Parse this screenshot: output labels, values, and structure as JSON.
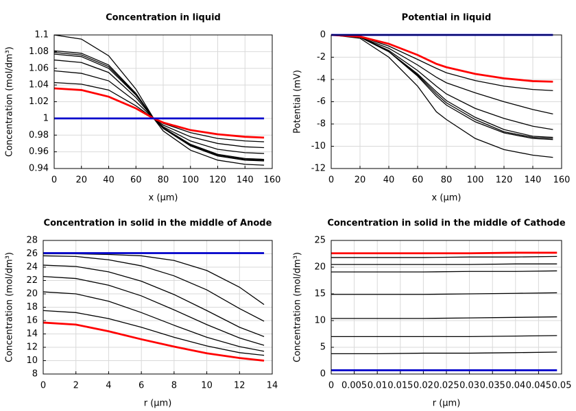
{
  "chart_data": [
    {
      "type": "line",
      "title": "Concentration in liquid",
      "x_label": "x (µm)",
      "y_label": "Concentration (mol/dm³)",
      "x": [
        0,
        20,
        40,
        60,
        73,
        80,
        100,
        120,
        140,
        154
      ],
      "xlim": [
        0,
        160
      ],
      "xticks": [
        0,
        20,
        40,
        60,
        80,
        100,
        120,
        140,
        160
      ],
      "ylim": [
        0.94,
        1.1
      ],
      "yticks": [
        0.94,
        0.96,
        0.98,
        1,
        1.02,
        1.04,
        1.06,
        1.08,
        1.1
      ],
      "grid": true,
      "series": [
        {
          "color": "#000000",
          "values": [
            1.1,
            1.095,
            1.075,
            1.035,
            1.0,
            0.985,
            0.962,
            0.95,
            0.945,
            0.944
          ]
        },
        {
          "color": "#000000",
          "values": [
            1.081,
            1.078,
            1.064,
            1.03,
            1.0,
            0.988,
            0.967,
            0.955,
            0.95,
            0.949
          ]
        },
        {
          "color": "#000000",
          "values": [
            1.079,
            1.076,
            1.062,
            1.029,
            1.0,
            0.988,
            0.968,
            0.956,
            0.951,
            0.95
          ]
        },
        {
          "color": "#000000",
          "values": [
            1.077,
            1.074,
            1.06,
            1.028,
            1.0,
            0.989,
            0.969,
            0.957,
            0.952,
            0.951
          ]
        },
        {
          "color": "#000000",
          "values": [
            1.07,
            1.067,
            1.055,
            1.025,
            1.0,
            0.99,
            0.973,
            0.963,
            0.959,
            0.958
          ]
        },
        {
          "color": "#000000",
          "values": [
            1.057,
            1.054,
            1.045,
            1.02,
            1.0,
            0.992,
            0.978,
            0.97,
            0.966,
            0.965
          ]
        },
        {
          "color": "#000000",
          "values": [
            1.043,
            1.041,
            1.034,
            1.015,
            1.0,
            0.994,
            0.983,
            0.976,
            0.973,
            0.972
          ]
        },
        {
          "color": "#ff0000",
          "values": [
            1.036,
            1.034,
            1.026,
            1.012,
            1.0,
            0.995,
            0.986,
            0.981,
            0.978,
            0.977
          ]
        },
        {
          "color": "#0000cc",
          "values": [
            1,
            1,
            1,
            1,
            1,
            1,
            1,
            1,
            1,
            1
          ]
        }
      ]
    },
    {
      "type": "line",
      "title": "Potential in liquid",
      "x_label": "x (µm)",
      "y_label": "Potential (mV)",
      "x": [
        0,
        20,
        40,
        60,
        73,
        80,
        100,
        120,
        140,
        154
      ],
      "xlim": [
        0,
        160
      ],
      "xticks": [
        0,
        20,
        40,
        60,
        80,
        100,
        120,
        140,
        160
      ],
      "ylim": [
        -12,
        0
      ],
      "yticks": [
        -12,
        -10,
        -8,
        -6,
        -4,
        -2,
        0
      ],
      "grid": true,
      "series": [
        {
          "color": "#000000",
          "values": [
            0,
            -0.15,
            -1.0,
            -2.2,
            -3.0,
            -3.4,
            -4.1,
            -4.6,
            -4.9,
            -5.0
          ]
        },
        {
          "color": "#000000",
          "values": [
            0,
            -0.2,
            -1.2,
            -2.7,
            -3.8,
            -4.3,
            -5.2,
            -6.0,
            -6.7,
            -7.1
          ]
        },
        {
          "color": "#000000",
          "values": [
            0,
            -0.2,
            -1.4,
            -3.2,
            -4.6,
            -5.3,
            -6.6,
            -7.5,
            -8.2,
            -8.5
          ]
        },
        {
          "color": "#000000",
          "values": [
            0,
            -0.2,
            -1.5,
            -3.5,
            -5.1,
            -5.9,
            -7.4,
            -8.5,
            -9.1,
            -9.2
          ]
        },
        {
          "color": "#000000",
          "values": [
            0,
            -0.2,
            -1.5,
            -3.6,
            -5.3,
            -6.1,
            -7.6,
            -8.7,
            -9.2,
            -9.3
          ]
        },
        {
          "color": "#000000",
          "values": [
            0,
            -0.2,
            -1.5,
            -3.7,
            -5.5,
            -6.3,
            -7.8,
            -8.8,
            -9.3,
            -9.4
          ]
        },
        {
          "color": "#000000",
          "values": [
            0,
            -0.3,
            -2.0,
            -4.6,
            -6.9,
            -7.6,
            -9.3,
            -10.3,
            -10.8,
            -11.0
          ]
        },
        {
          "color": "#ff0000",
          "values": [
            0,
            -0.15,
            -0.8,
            -1.8,
            -2.6,
            -2.9,
            -3.5,
            -3.9,
            -4.15,
            -4.2
          ]
        },
        {
          "color": "#0000cc",
          "values": [
            0,
            0,
            0,
            0,
            0,
            0,
            0,
            0,
            0,
            0
          ]
        }
      ]
    },
    {
      "type": "line",
      "title": "Concentration in solid in the middle of Anode",
      "x_label": "r (µm)",
      "y_label": "Concentration (mol/dm³)",
      "x": [
        0,
        2,
        4,
        6,
        8,
        10,
        12,
        13.5
      ],
      "xlim": [
        0,
        14
      ],
      "xticks": [
        0,
        2,
        4,
        6,
        8,
        10,
        12,
        14
      ],
      "ylim": [
        8,
        28
      ],
      "yticks": [
        8,
        10,
        12,
        14,
        16,
        18,
        20,
        22,
        24,
        26,
        28
      ],
      "grid": true,
      "series": [
        {
          "color": "#000000",
          "values": [
            26.0,
            26.0,
            25.9,
            25.7,
            25.0,
            23.5,
            21.0,
            18.4
          ]
        },
        {
          "color": "#000000",
          "values": [
            25.7,
            25.6,
            25.1,
            24.2,
            22.7,
            20.6,
            17.8,
            15.9
          ]
        },
        {
          "color": "#000000",
          "values": [
            24.3,
            24.1,
            23.3,
            21.9,
            19.9,
            17.5,
            15.0,
            13.6
          ]
        },
        {
          "color": "#000000",
          "values": [
            22.6,
            22.3,
            21.3,
            19.7,
            17.6,
            15.4,
            13.4,
            12.3
          ]
        },
        {
          "color": "#000000",
          "values": [
            20.3,
            20.0,
            18.9,
            17.2,
            15.3,
            13.5,
            12.1,
            11.4
          ]
        },
        {
          "color": "#000000",
          "values": [
            17.5,
            17.2,
            16.3,
            15.0,
            13.5,
            12.2,
            11.2,
            10.8
          ]
        },
        {
          "color": "#ff0000",
          "values": [
            15.7,
            15.4,
            14.4,
            13.2,
            12.1,
            11.1,
            10.4,
            10.0
          ]
        },
        {
          "color": "#0000cc",
          "values": [
            26.1,
            26.1,
            26.1,
            26.1,
            26.1,
            26.1,
            26.1,
            26.1
          ]
        }
      ]
    },
    {
      "type": "line",
      "title": "Concentration in solid in the middle of Cathode",
      "x_label": "r (µm)",
      "y_label": "Concentration (mol/dm³)",
      "x": [
        0,
        0.01,
        0.02,
        0.03,
        0.04,
        0.049
      ],
      "xlim": [
        0,
        0.05
      ],
      "xticks": [
        0,
        0.005,
        0.01,
        0.015,
        0.02,
        0.025,
        0.03,
        0.035,
        0.04,
        0.045,
        0.05
      ],
      "ylim": [
        0,
        25
      ],
      "yticks": [
        0,
        5,
        10,
        15,
        20,
        25
      ],
      "grid": true,
      "series": [
        {
          "color": "#000000",
          "values": [
            21.8,
            21.8,
            21.8,
            21.9,
            21.9,
            22.0
          ]
        },
        {
          "color": "#000000",
          "values": [
            20.5,
            20.5,
            20.5,
            20.5,
            20.6,
            20.6
          ]
        },
        {
          "color": "#000000",
          "values": [
            19.1,
            19.1,
            19.1,
            19.2,
            19.2,
            19.3
          ]
        },
        {
          "color": "#000000",
          "values": [
            14.9,
            14.9,
            14.9,
            15.0,
            15.1,
            15.2
          ]
        },
        {
          "color": "#000000",
          "values": [
            10.4,
            10.4,
            10.4,
            10.5,
            10.6,
            10.7
          ]
        },
        {
          "color": "#000000",
          "values": [
            7.0,
            7.0,
            7.0,
            7.0,
            7.1,
            7.2
          ]
        },
        {
          "color": "#000000",
          "values": [
            3.8,
            3.8,
            3.9,
            3.9,
            4.0,
            4.1
          ]
        },
        {
          "color": "#ff0000",
          "values": [
            22.6,
            22.6,
            22.6,
            22.6,
            22.7,
            22.7
          ]
        },
        {
          "color": "#0000cc",
          "values": [
            0.7,
            0.7,
            0.7,
            0.7,
            0.7,
            0.7
          ]
        }
      ]
    }
  ]
}
